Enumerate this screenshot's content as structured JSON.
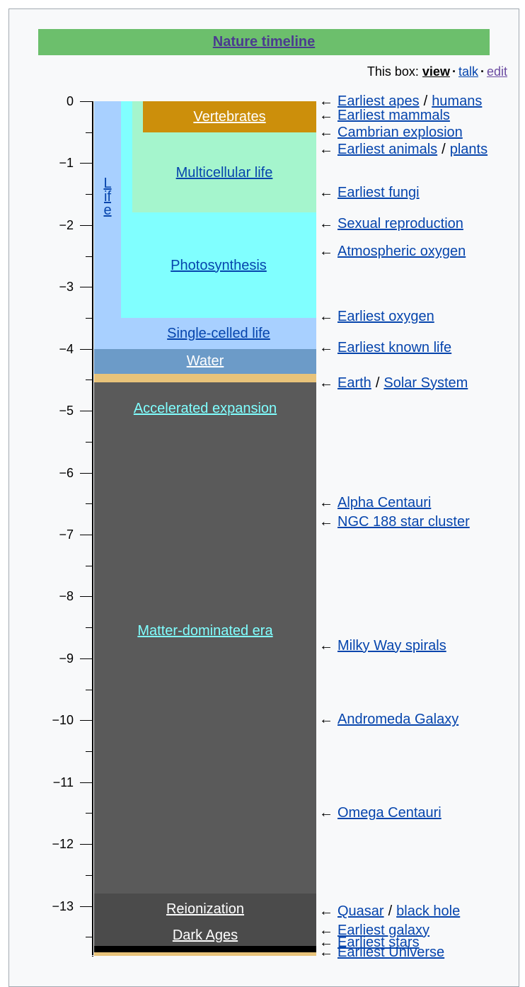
{
  "header": {
    "title": "Nature timeline",
    "box_label": "This box:",
    "links": [
      "view",
      "talk",
      "edit"
    ],
    "link_separator": "·"
  },
  "axis": {
    "limit": [
      0,
      -13.8
    ],
    "ticks": [
      {
        "value": 0,
        "label": "0"
      },
      {
        "value": -1,
        "label": "−1"
      },
      {
        "value": -2,
        "label": "−2"
      },
      {
        "value": -3,
        "label": "−3"
      },
      {
        "value": -4,
        "label": "−4"
      },
      {
        "value": -5,
        "label": "−5"
      },
      {
        "value": -6,
        "label": "−6"
      },
      {
        "value": -7,
        "label": "−7"
      },
      {
        "value": -8,
        "label": "−8"
      },
      {
        "value": -9,
        "label": "−9"
      },
      {
        "value": -10,
        "label": "−10"
      },
      {
        "value": -11,
        "label": "−11"
      },
      {
        "value": -12,
        "label": "−12"
      },
      {
        "value": -13,
        "label": "−13"
      }
    ],
    "minor_ticks": [
      -0.5,
      -1.5,
      -2.5,
      -3.5,
      -4.5,
      -5.5,
      -6.5,
      -7.5,
      -8.5,
      -9.5,
      -10.5,
      -11.5,
      -12.5,
      -13.5
    ]
  },
  "bands": [
    {
      "label": "Single-celled life",
      "side_label": "Life",
      "level": 0,
      "from": 0,
      "to": -4,
      "color": "#a8d0ff",
      "text_color": "#0645ad"
    },
    {
      "label": "Photosynthesis",
      "level": 1,
      "from": 0,
      "to": -3.5,
      "color": "#80ffff",
      "text_color": "#0645ad"
    },
    {
      "label": "Multicellular life",
      "level": 2,
      "from": 0,
      "to": -1.8,
      "color": "#a5f5cd",
      "text_color": "#0645ad"
    },
    {
      "label": "Vertebrates",
      "level": 3,
      "from": 0,
      "to": -0.5,
      "color": "#cc8f0b",
      "text_color": "#ffffff"
    },
    {
      "label": "Water",
      "level": 0,
      "from": -4,
      "to": -4.4,
      "color": "#6c9bc8",
      "text_color": "#ffffff"
    },
    {
      "level": 0,
      "from": -4.4,
      "to": -4.54,
      "color": "#e8c37a"
    },
    {
      "label": "Matter-dominated era",
      "top_label": "Accelerated expansion",
      "level": 0,
      "from": -4.54,
      "to": -12.8,
      "color": "#5a5a5a",
      "text_color": "#80ffff"
    },
    {
      "label": "Reionization",
      "level": 0,
      "from": -12.8,
      "to": -13.3,
      "color": "#4b4b4b",
      "text_color": "#ffffff"
    },
    {
      "label": "Dark Ages",
      "level": 0,
      "from": -13.3,
      "to": -13.65,
      "color": "#4b4b4b",
      "text_color": "#ffffff"
    },
    {
      "level": 0,
      "from": -13.65,
      "to": -13.75,
      "color": "#000000"
    },
    {
      "level": 0,
      "from": -13.75,
      "to": -13.8,
      "color": "#e8c37a"
    }
  ],
  "arrow": "←",
  "event_separator": "/",
  "events": [
    {
      "at": 0,
      "links": [
        "Earliest apes",
        "humans"
      ]
    },
    {
      "at": -0.23,
      "links": [
        "Earliest mammals"
      ]
    },
    {
      "at": -0.5,
      "links": [
        "Cambrian explosion"
      ]
    },
    {
      "at": -0.78,
      "links": [
        "Earliest animals",
        "plants"
      ]
    },
    {
      "at": -1.48,
      "links": [
        "Earliest fungi"
      ]
    },
    {
      "at": -1.98,
      "links": [
        "Sexual reproduction"
      ]
    },
    {
      "at": -2.43,
      "links": [
        "Atmospheric oxygen"
      ]
    },
    {
      "at": -3.48,
      "links": [
        "Earliest oxygen"
      ]
    },
    {
      "at": -3.98,
      "links": [
        "Earliest known life"
      ]
    },
    {
      "at": -4.55,
      "links": [
        "Earth",
        "Solar System"
      ]
    },
    {
      "at": -6.48,
      "links": [
        "Alpha Centauri"
      ]
    },
    {
      "at": -6.79,
      "links": [
        "NGC 188 star cluster"
      ]
    },
    {
      "at": -8.79,
      "links": [
        "Milky Way spirals"
      ]
    },
    {
      "at": -9.99,
      "links": [
        "Andromeda Galaxy"
      ]
    },
    {
      "at": -11.5,
      "links": [
        "Omega Centauri"
      ]
    },
    {
      "at": -13.09,
      "links": [
        "Quasar",
        "black hole"
      ]
    },
    {
      "at": -13.39,
      "links": [
        "Earliest galaxy"
      ]
    },
    {
      "at": -13.59,
      "links": [
        "Earliest stars"
      ]
    },
    {
      "at": -13.75,
      "links": [
        "Earliest Universe"
      ]
    }
  ]
}
